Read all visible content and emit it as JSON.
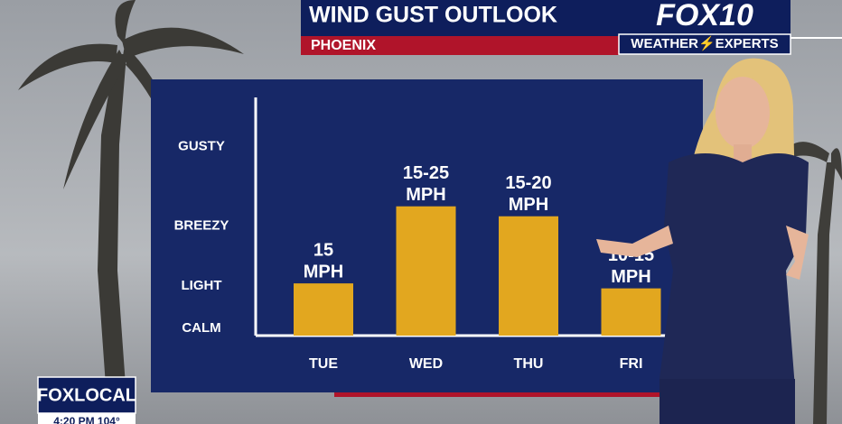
{
  "header": {
    "title": "WIND GUST OUTLOOK",
    "location": "PHOENIX",
    "logo": "FOX10",
    "logo_tagline": "WEATHER⚡EXPERTS"
  },
  "bug": {
    "brand": "FOXLOCAL",
    "status": "4:20 PM 104°"
  },
  "chart_data": {
    "type": "bar",
    "categories": [
      "TUE",
      "WED",
      "THU",
      "FRI"
    ],
    "values": [
      1.05,
      2.6,
      2.4,
      0.95
    ],
    "bar_labels": [
      [
        "15",
        "MPH"
      ],
      [
        "15-25",
        "MPH"
      ],
      [
        "15-20",
        "MPH"
      ],
      [
        "10-15",
        "MPH"
      ]
    ],
    "color": "#e2a71f",
    "ylim": [
      0,
      4.7
    ],
    "yticks": [
      {
        "value": 0,
        "label": "CALM"
      },
      {
        "value": 1,
        "label": "LIGHT"
      },
      {
        "value": 2.2,
        "label": "BREEZY"
      },
      {
        "value": 3.8,
        "label": "GUSTY"
      }
    ]
  }
}
